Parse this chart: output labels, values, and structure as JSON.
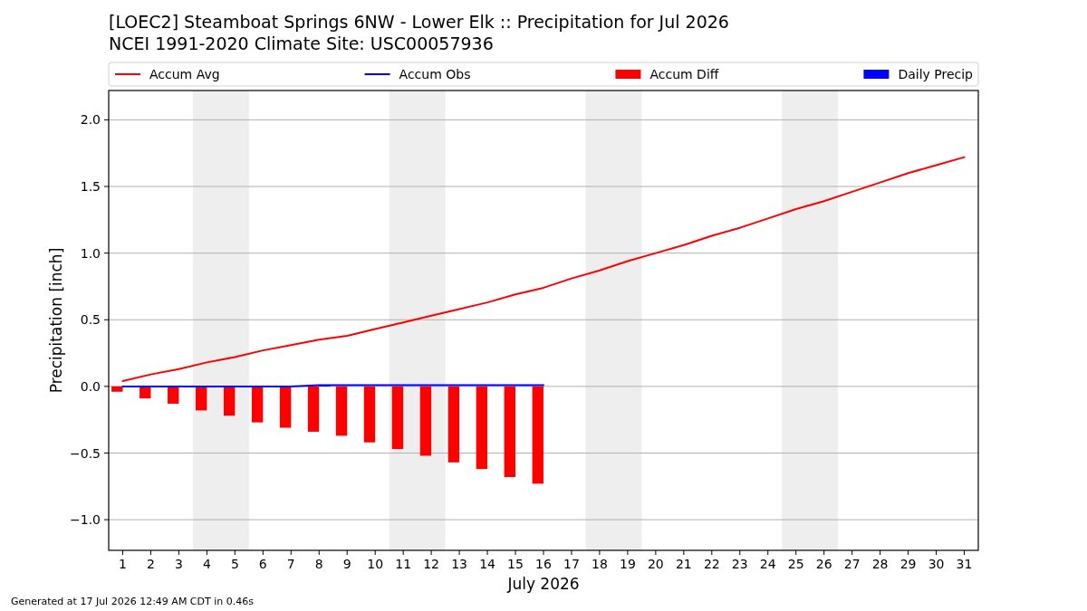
{
  "chart_data": {
    "type": "line",
    "title": "[LOEC2] Steamboat Springs 6NW - Lower Elk :: Precipitation for Jul 2026",
    "subtitle": "NCEI 1991-2020 Climate Site: USC00057936",
    "xlabel": "July 2026",
    "ylabel": "Precipitation [inch]",
    "x": [
      1,
      2,
      3,
      4,
      5,
      6,
      7,
      8,
      9,
      10,
      11,
      12,
      13,
      14,
      15,
      16,
      17,
      18,
      19,
      20,
      21,
      22,
      23,
      24,
      25,
      26,
      27,
      28,
      29,
      30,
      31
    ],
    "xlim": [
      0.5,
      31.5
    ],
    "xticks": [
      1,
      2,
      3,
      4,
      5,
      6,
      7,
      8,
      9,
      10,
      11,
      12,
      13,
      14,
      15,
      16,
      17,
      18,
      19,
      20,
      21,
      22,
      23,
      24,
      25,
      26,
      27,
      28,
      29,
      30,
      31
    ],
    "ylim": [
      -1.23,
      2.22
    ],
    "yticks": [
      {
        "value": -1,
        "label": "−1.0"
      },
      {
        "value": -0.5,
        "label": "−0.5"
      },
      {
        "value": 0,
        "label": "0.0"
      },
      {
        "value": 0.5,
        "label": "0.5"
      },
      {
        "value": 1,
        "label": "1.0"
      },
      {
        "value": 1.5,
        "label": "1.5"
      },
      {
        "value": 2,
        "label": "2.0"
      }
    ],
    "grid": "y",
    "legend": "top",
    "bands": [
      {
        "axis": "x",
        "from": 3.5,
        "to": 5.5,
        "color": "#eeeeee"
      },
      {
        "axis": "x",
        "from": 10.5,
        "to": 12.5,
        "color": "#eeeeee"
      },
      {
        "axis": "x",
        "from": 17.5,
        "to": 19.5,
        "color": "#eeeeee"
      },
      {
        "axis": "x",
        "from": 24.5,
        "to": 26.5,
        "color": "#eeeeee"
      }
    ],
    "series": [
      {
        "name": "Accum Avg",
        "color": "#ff0000",
        "values": [
          0.04,
          0.09,
          0.13,
          0.18,
          0.22,
          0.27,
          0.31,
          0.35,
          0.38,
          0.43,
          0.48,
          0.53,
          0.58,
          0.63,
          0.69,
          0.74,
          0.81,
          0.87,
          0.94,
          1.0,
          1.06,
          1.13,
          1.19,
          1.26,
          1.33,
          1.39,
          1.46,
          1.53,
          1.6,
          1.66,
          1.72
        ]
      },
      {
        "name": "Accum Obs",
        "color": "#0000ff",
        "values": [
          0,
          0,
          0,
          0,
          0,
          0,
          0,
          0.01,
          0.01,
          0.01,
          0.01,
          0.01,
          0.01,
          0.01,
          0.01,
          0.01,
          null,
          null,
          null,
          null,
          null,
          null,
          null,
          null,
          null,
          null,
          null,
          null,
          null,
          null,
          null
        ]
      },
      {
        "name": "Accum Diff",
        "type": "bar",
        "color": "#ff0000",
        "values": [
          -0.04,
          -0.09,
          -0.13,
          -0.18,
          -0.22,
          -0.27,
          -0.31,
          -0.34,
          -0.37,
          -0.42,
          -0.47,
          -0.52,
          -0.57,
          -0.62,
          -0.68,
          -0.73,
          null,
          null,
          null,
          null,
          null,
          null,
          null,
          null,
          null,
          null,
          null,
          null,
          null,
          null,
          null
        ]
      },
      {
        "name": "Daily Precip",
        "type": "bar",
        "color": "#0000ff",
        "values": [
          null,
          null,
          null,
          null,
          null,
          null,
          null,
          0.01,
          null,
          null,
          null,
          null,
          null,
          null,
          null,
          null,
          null,
          null,
          null,
          null,
          null,
          null,
          null,
          null,
          null,
          null,
          null,
          null,
          null,
          null,
          null
        ]
      }
    ],
    "annotations": [
      "Generated at 17 Jul 2026 12:49 AM CDT in 0.46s"
    ]
  }
}
